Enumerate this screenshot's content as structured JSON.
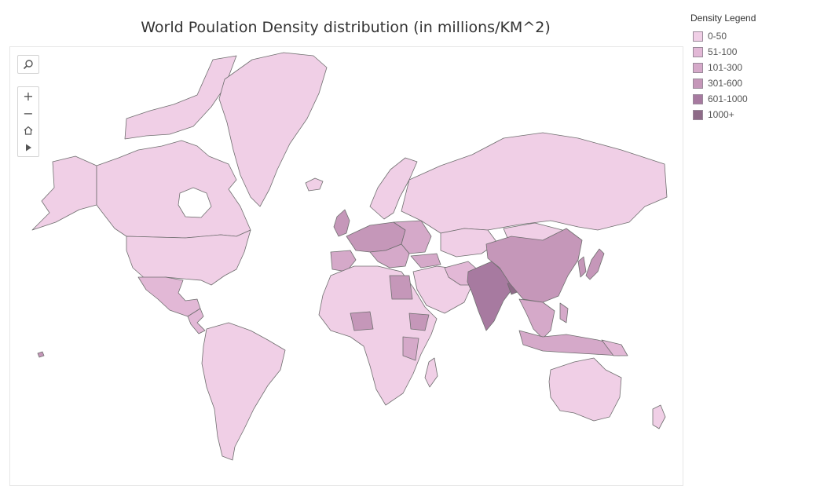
{
  "title": "World Poulation Density distribution (in millions/KM^2)",
  "legend": {
    "title": "Density Legend",
    "items": [
      {
        "label": "0-50",
        "color": "#f0cfe6"
      },
      {
        "label": "51-100",
        "color": "#e2b8d6"
      },
      {
        "label": "101-300",
        "color": "#d5a9c9"
      },
      {
        "label": "301-600",
        "color": "#c597b9"
      },
      {
        "label": "601-1000",
        "color": "#a77aa0"
      },
      {
        "label": "1000+",
        "color": "#8e6b88"
      }
    ]
  },
  "map": {
    "border_color": "#6f6f6f",
    "tools": {
      "search": "search-icon",
      "zoom_in": "+",
      "zoom_out": "−",
      "home": "home-icon",
      "expand": "play-icon"
    }
  }
}
